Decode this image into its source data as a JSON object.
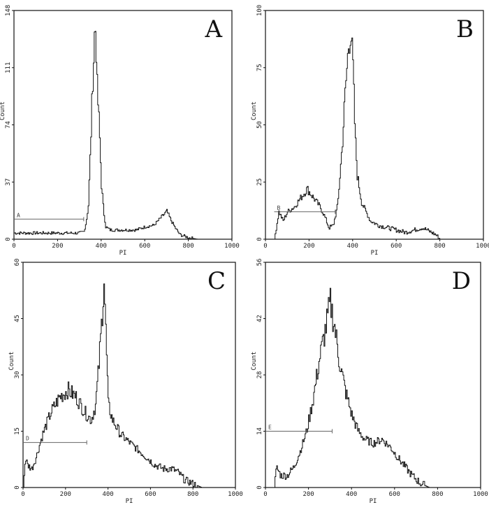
{
  "chart_data": [
    {
      "panel": "A",
      "type": "line",
      "xlabel": "PI",
      "ylabel": "Count",
      "xlim": [
        0,
        1000
      ],
      "ylim": [
        0,
        148
      ],
      "xticks": [
        "0",
        "200",
        "400",
        "600",
        "800",
        "1000"
      ],
      "yticks": [
        "0",
        "37",
        "74",
        "111",
        "148"
      ],
      "gate": {
        "label": "A",
        "x_start": 0,
        "x_end": 320,
        "y": 13
      },
      "points": [
        [
          0,
          4
        ],
        [
          40,
          4
        ],
        [
          80,
          4
        ],
        [
          120,
          4
        ],
        [
          160,
          4
        ],
        [
          200,
          4
        ],
        [
          240,
          4
        ],
        [
          280,
          4
        ],
        [
          300,
          4
        ],
        [
          320,
          5
        ],
        [
          330,
          11
        ],
        [
          340,
          22
        ],
        [
          350,
          60
        ],
        [
          360,
          105
        ],
        [
          365,
          120
        ],
        [
          370,
          140
        ],
        [
          375,
          130
        ],
        [
          380,
          98
        ],
        [
          390,
          72
        ],
        [
          400,
          35
        ],
        [
          410,
          18
        ],
        [
          420,
          8
        ],
        [
          440,
          6
        ],
        [
          480,
          6
        ],
        [
          520,
          6
        ],
        [
          560,
          6
        ],
        [
          600,
          8
        ],
        [
          640,
          9
        ],
        [
          660,
          12
        ],
        [
          680,
          15
        ],
        [
          700,
          18
        ],
        [
          720,
          12
        ],
        [
          740,
          7
        ],
        [
          760,
          3
        ],
        [
          780,
          2
        ],
        [
          800,
          1
        ],
        [
          840,
          0
        ],
        [
          1000,
          0
        ]
      ]
    },
    {
      "panel": "B",
      "type": "line",
      "xlabel": "PI",
      "ylabel": "Count",
      "xlim": [
        0,
        1000
      ],
      "ylim": [
        0,
        100
      ],
      "xticks": [
        "0",
        "200",
        "400",
        "600",
        "800",
        "1000"
      ],
      "yticks": [
        "0",
        "25",
        "50",
        "75",
        "100"
      ],
      "gate": {
        "label": "B",
        "x_start": 40,
        "x_end": 320,
        "y": 12
      },
      "points": [
        [
          40,
          0
        ],
        [
          50,
          6
        ],
        [
          60,
          12
        ],
        [
          80,
          8
        ],
        [
          100,
          12
        ],
        [
          130,
          14
        ],
        [
          160,
          18
        ],
        [
          190,
          22
        ],
        [
          220,
          18
        ],
        [
          250,
          14
        ],
        [
          270,
          10
        ],
        [
          290,
          5
        ],
        [
          310,
          6
        ],
        [
          330,
          15
        ],
        [
          350,
          40
        ],
        [
          365,
          65
        ],
        [
          380,
          85
        ],
        [
          390,
          92
        ],
        [
          400,
          75
        ],
        [
          410,
          45
        ],
        [
          420,
          28
        ],
        [
          440,
          16
        ],
        [
          480,
          8
        ],
        [
          520,
          6
        ],
        [
          560,
          5
        ],
        [
          600,
          4
        ],
        [
          640,
          3
        ],
        [
          680,
          4
        ],
        [
          720,
          5
        ],
        [
          760,
          3
        ],
        [
          780,
          2
        ],
        [
          800,
          0
        ],
        [
          1000,
          0
        ]
      ]
    },
    {
      "panel": "C",
      "type": "line",
      "xlabel": "PI",
      "ylabel": "Count",
      "xlim": [
        0,
        1000
      ],
      "ylim": [
        0,
        60
      ],
      "xticks": [
        "0",
        "200",
        "400",
        "600",
        "800",
        "1000"
      ],
      "yticks": [
        "0",
        "15",
        "30",
        "45",
        "60"
      ],
      "gate": {
        "label": "D",
        "x_start": 0,
        "x_end": 300,
        "y": 12
      },
      "points": [
        [
          0,
          0
        ],
        [
          10,
          8
        ],
        [
          20,
          6
        ],
        [
          40,
          5
        ],
        [
          60,
          8
        ],
        [
          90,
          14
        ],
        [
          130,
          20
        ],
        [
          170,
          24
        ],
        [
          210,
          26
        ],
        [
          250,
          24
        ],
        [
          290,
          20
        ],
        [
          320,
          18
        ],
        [
          340,
          22
        ],
        [
          355,
          32
        ],
        [
          370,
          45
        ],
        [
          380,
          56
        ],
        [
          390,
          38
        ],
        [
          400,
          22
        ],
        [
          420,
          18
        ],
        [
          460,
          14
        ],
        [
          500,
          12
        ],
        [
          540,
          10
        ],
        [
          580,
          8
        ],
        [
          620,
          6
        ],
        [
          660,
          5
        ],
        [
          700,
          5
        ],
        [
          730,
          4
        ],
        [
          760,
          2
        ],
        [
          800,
          1
        ],
        [
          840,
          0
        ],
        [
          1000,
          0
        ]
      ]
    },
    {
      "panel": "D",
      "type": "line",
      "xlabel": "PI",
      "ylabel": "Count",
      "xlim": [
        0,
        1000
      ],
      "ylim": [
        0,
        56
      ],
      "xticks": [
        "0",
        "200",
        "400",
        "600",
        "800",
        "1000"
      ],
      "yticks": [
        "0",
        "14",
        "28",
        "42",
        "56"
      ],
      "gate": {
        "label": "E",
        "x_start": 0,
        "x_end": 310,
        "y": 14
      },
      "points": [
        [
          40,
          0
        ],
        [
          50,
          5
        ],
        [
          70,
          3
        ],
        [
          100,
          3
        ],
        [
          130,
          5
        ],
        [
          160,
          9
        ],
        [
          190,
          14
        ],
        [
          220,
          22
        ],
        [
          250,
          32
        ],
        [
          280,
          40
        ],
        [
          300,
          46
        ],
        [
          320,
          40
        ],
        [
          340,
          32
        ],
        [
          370,
          24
        ],
        [
          400,
          18
        ],
        [
          430,
          14
        ],
        [
          460,
          12
        ],
        [
          500,
          11
        ],
        [
          540,
          12
        ],
        [
          580,
          10
        ],
        [
          620,
          7
        ],
        [
          650,
          5
        ],
        [
          680,
          3
        ],
        [
          720,
          1
        ],
        [
          760,
          0
        ],
        [
          1000,
          0
        ]
      ]
    }
  ]
}
